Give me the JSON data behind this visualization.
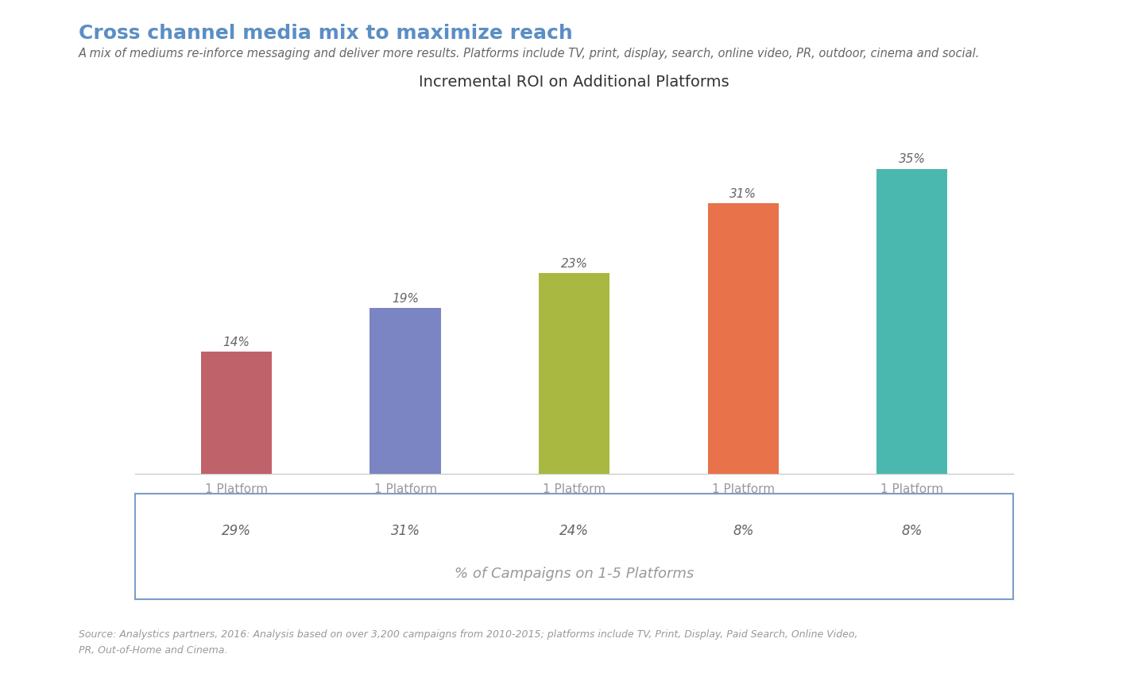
{
  "title": "Cross channel media mix to maximize reach",
  "subtitle": "A mix of mediums re-inforce messaging and deliver more results. Platforms include TV, print, display, search, online video, PR, outdoor, cinema and social.",
  "chart_title": "Incremental ROI on Additional Platforms",
  "categories": [
    "1 Platform",
    "1 Platform",
    "1 Platform",
    "1 Platform",
    "1 Platform"
  ],
  "values": [
    14,
    19,
    23,
    31,
    35
  ],
  "bar_colors": [
    "#C0626A",
    "#7B85C4",
    "#A8B840",
    "#E8724A",
    "#4BB8B0"
  ],
  "value_labels": [
    "14%",
    "19%",
    "23%",
    "31%",
    "35%"
  ],
  "campaign_percentages": [
    "29%",
    "31%",
    "24%",
    "8%",
    "8%"
  ],
  "campaign_label": "% of Campaigns on 1-5 Platforms",
  "source_line1": "Source: Analystics partners, 2016: Analysis based on over 3,200 campaigns from 2010-2015; platforms include TV, Print, Display, Paid Search, Online Video,",
  "source_line2": "PR, Out-of-Home and Cinema.",
  "title_color": "#5B8EC4",
  "subtitle_color": "#666666",
  "chart_title_color": "#333333",
  "bar_label_color": "#666666",
  "source_color": "#999999",
  "box_border_color": "#7B9EC8",
  "tick_color": "#999999",
  "ylim": [
    0,
    42
  ],
  "background_color": "#ffffff"
}
